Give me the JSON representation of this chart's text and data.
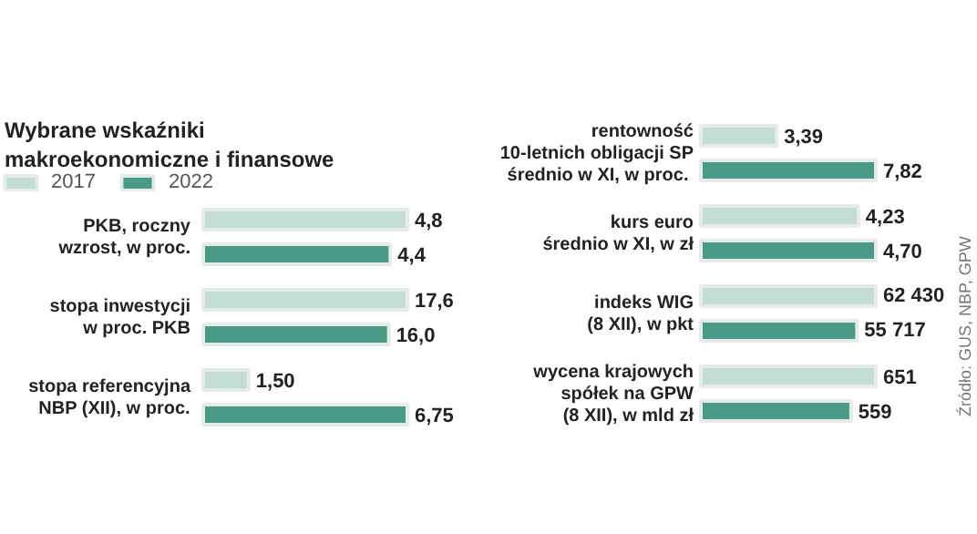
{
  "chart_data": [
    {
      "type": "bar",
      "orientation": "horizontal",
      "title": "Wybrane wskaźniki\nmakroekonomiczne i finansowe",
      "legend": "top left",
      "categories": [
        "PKB, roczny\nwzrost, w proc."
      ],
      "data_labels": true,
      "series": [
        {
          "name": "2017",
          "color": "#c3ddd5",
          "values": [
            4.8
          ],
          "value_labels": [
            "4,8"
          ]
        },
        {
          "name": "2022",
          "color": "#4a9a88",
          "values": [
            4.4
          ],
          "value_labels": [
            "4,4"
          ]
        }
      ]
    },
    {
      "type": "bar",
      "orientation": "horizontal",
      "categories": [
        "stopa inwestycji\nw proc. PKB"
      ],
      "data_labels": true,
      "series": [
        {
          "color": "#c3ddd5",
          "values": [
            17.6
          ],
          "value_labels": [
            "17,6"
          ]
        },
        {
          "color": "#4a9a88",
          "values": [
            16.0
          ],
          "value_labels": [
            "16,0"
          ]
        }
      ]
    },
    {
      "type": "bar",
      "orientation": "horizontal",
      "categories": [
        "stopa referencyjna\nNBP (XII), w proc."
      ],
      "data_labels": true,
      "series": [
        {
          "color": "#c3ddd5",
          "values": [
            1.5
          ],
          "value_labels": [
            "1,50"
          ]
        },
        {
          "color": "#4a9a88",
          "values": [
            6.75
          ],
          "value_labels": [
            "6,75"
          ]
        }
      ]
    },
    {
      "type": "bar",
      "orientation": "horizontal",
      "categories": [
        "rentowność\n10-letnich obligacji SP\nśrednio w XI, w  proc."
      ],
      "data_labels": true,
      "series": [
        {
          "color": "#c3ddd5",
          "values": [
            3.39
          ],
          "value_labels": [
            "3,39"
          ]
        },
        {
          "color": "#4a9a88",
          "values": [
            7.82
          ],
          "value_labels": [
            "7,82"
          ]
        }
      ]
    },
    {
      "type": "bar",
      "orientation": "horizontal",
      "categories": [
        "kurs euro\nśrednio w XI, w zł"
      ],
      "data_labels": true,
      "series": [
        {
          "color": "#c3ddd5",
          "values": [
            4.23
          ],
          "value_labels": [
            "4,23"
          ]
        },
        {
          "color": "#4a9a88",
          "values": [
            4.7
          ],
          "value_labels": [
            "4,70"
          ]
        }
      ]
    },
    {
      "type": "bar",
      "orientation": "horizontal",
      "categories": [
        "indeks WIG\n(8 XII), w pkt"
      ],
      "data_labels": true,
      "series": [
        {
          "color": "#c3ddd5",
          "values": [
            62430
          ],
          "value_labels": [
            "62 430"
          ]
        },
        {
          "color": "#4a9a88",
          "values": [
            55717
          ],
          "value_labels": [
            "55 717"
          ]
        }
      ]
    },
    {
      "type": "bar",
      "orientation": "horizontal",
      "categories": [
        "wycena krajowych\nspółek na GPW\n(8 XII), w mld zł"
      ],
      "data_labels": true,
      "annotations": [
        "Źródło: GUS, NBP, GPW"
      ],
      "series": [
        {
          "color": "#c3ddd5",
          "values": [
            651
          ],
          "value_labels": [
            "651"
          ]
        },
        {
          "color": "#4a9a88",
          "values": [
            559
          ],
          "value_labels": [
            "559"
          ]
        }
      ]
    }
  ]
}
